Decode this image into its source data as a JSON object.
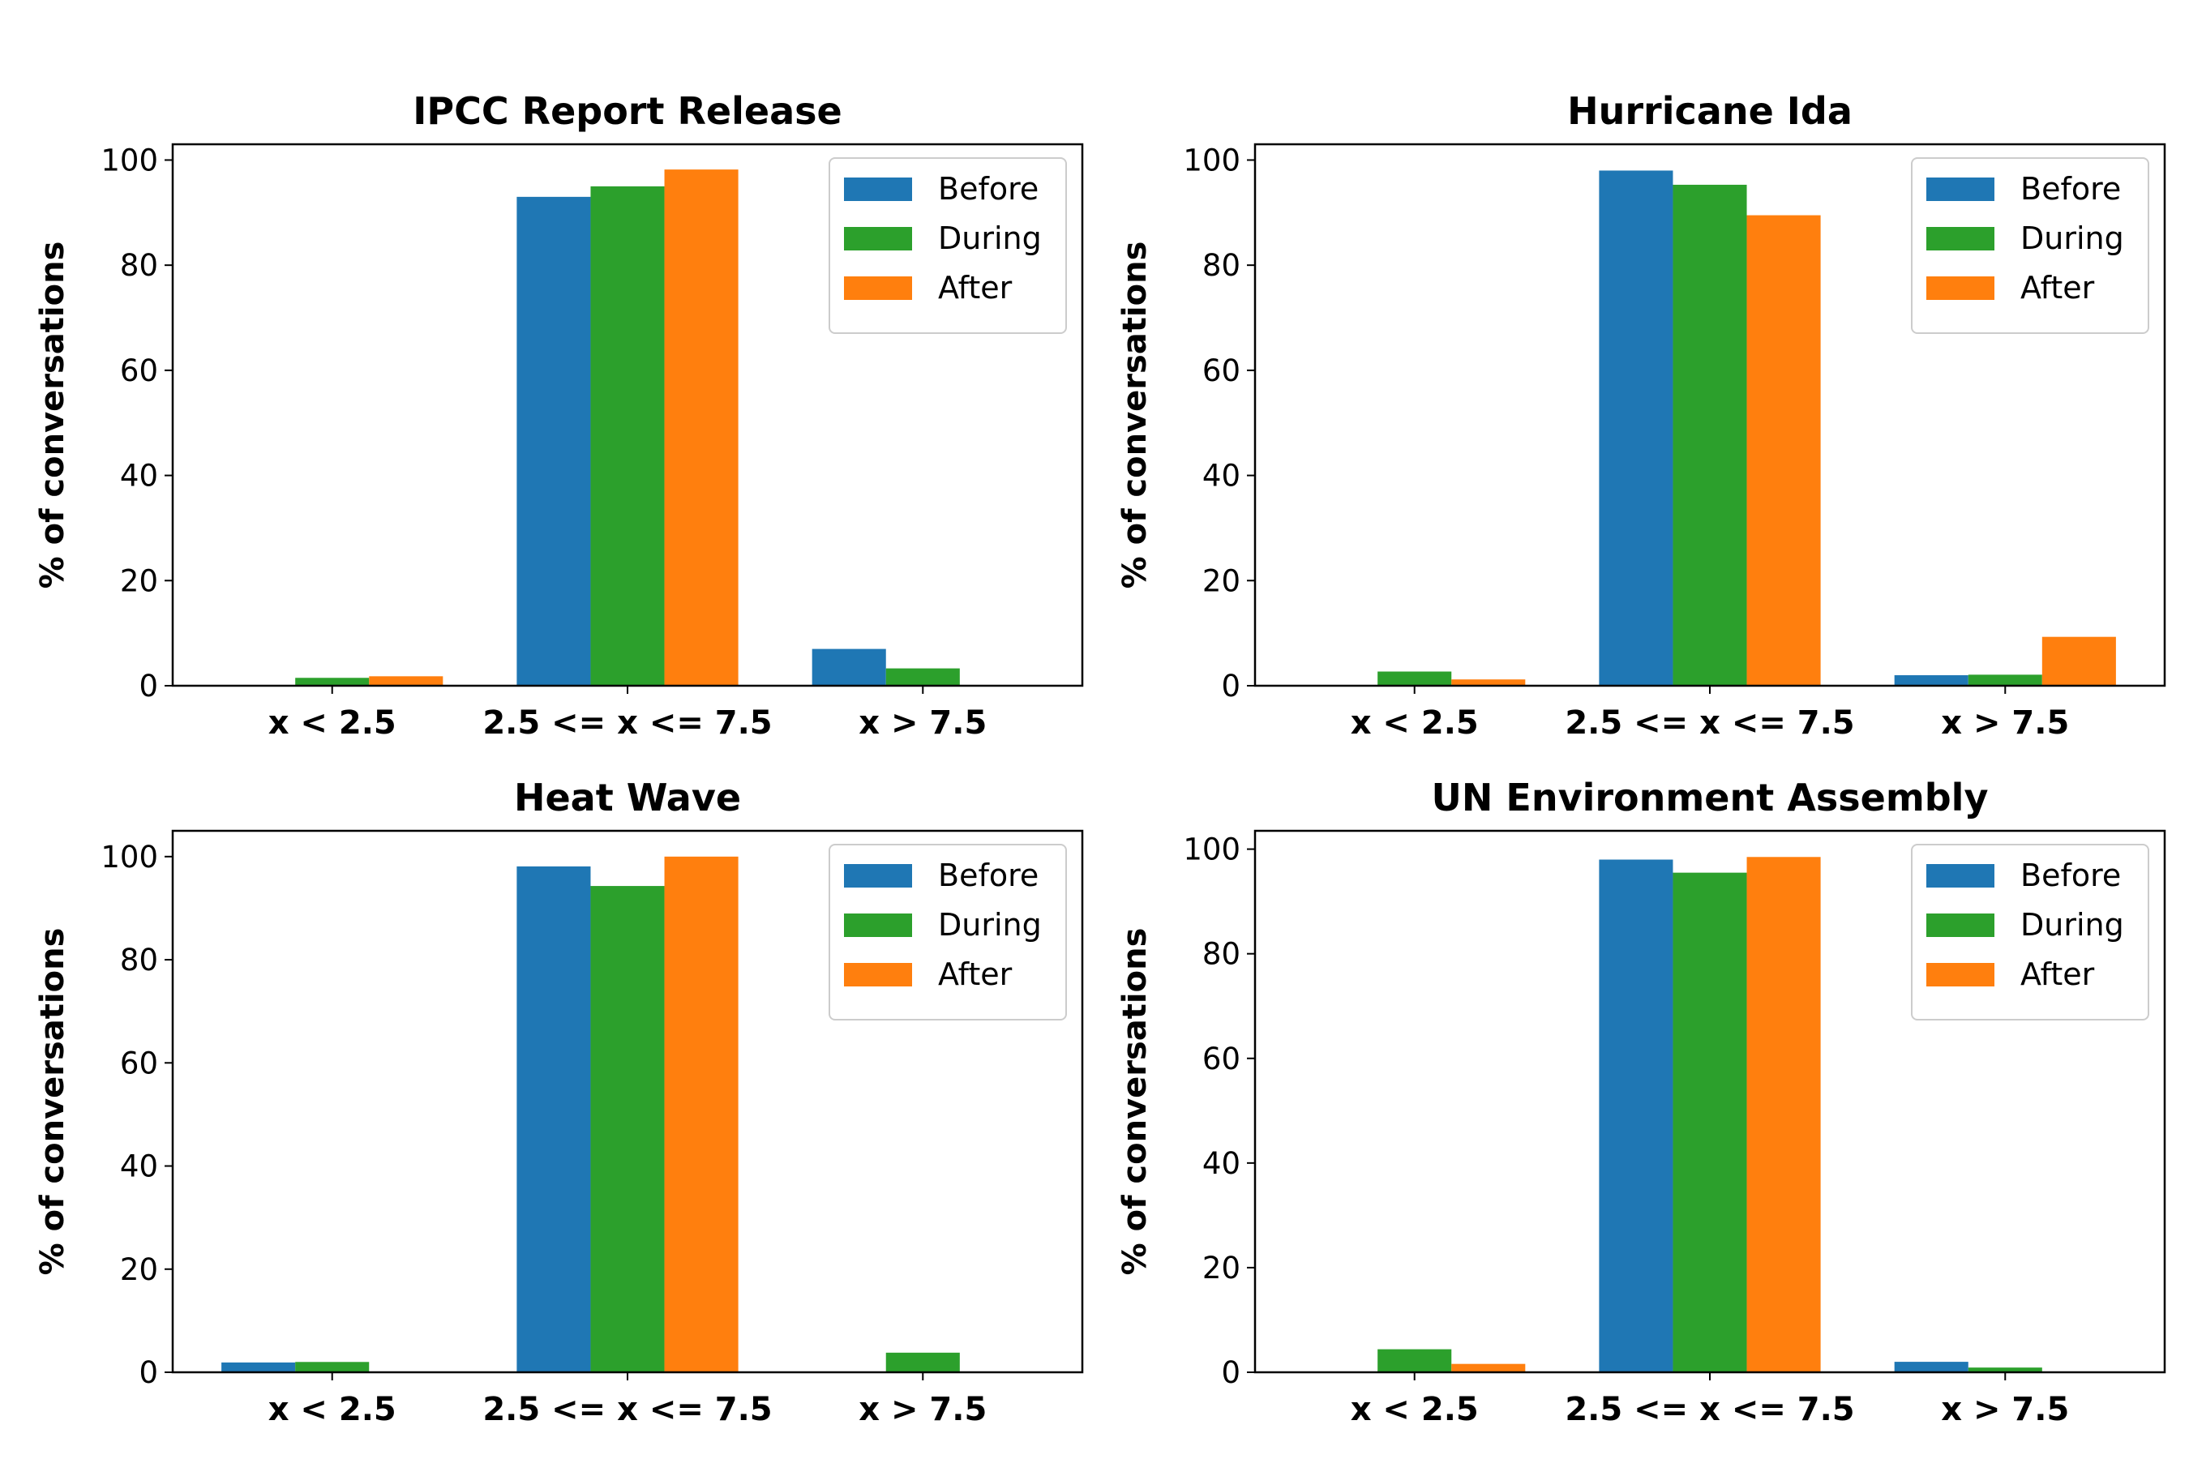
{
  "legend_placement": "upper right",
  "chart_data": [
    {
      "type": "bar",
      "title": "IPCC Report Release",
      "xlabel": "",
      "ylabel": "% of conversations",
      "categories": [
        "x < 2.5",
        "2.5 <= x <= 7.5",
        "x > 7.5"
      ],
      "ylim": [
        0,
        103
      ],
      "yticks": [
        0,
        20,
        40,
        60,
        80,
        100
      ],
      "series": [
        {
          "name": "Before",
          "color": "#1f77b4",
          "values": [
            0,
            93.0,
            7.0
          ]
        },
        {
          "name": "During",
          "color": "#2ca02c",
          "values": [
            1.5,
            95.0,
            3.3
          ]
        },
        {
          "name": "After",
          "color": "#ff7f0e",
          "values": [
            1.8,
            98.2,
            0
          ]
        }
      ]
    },
    {
      "type": "bar",
      "title": "Hurricane Ida",
      "xlabel": "",
      "ylabel": "% of conversations",
      "categories": [
        "x < 2.5",
        "2.5 <= x <= 7.5",
        "x > 7.5"
      ],
      "ylim": [
        0,
        103
      ],
      "yticks": [
        0,
        20,
        40,
        60,
        80,
        100
      ],
      "series": [
        {
          "name": "Before",
          "color": "#1f77b4",
          "values": [
            0,
            98.0,
            2.0
          ]
        },
        {
          "name": "During",
          "color": "#2ca02c",
          "values": [
            2.7,
            95.3,
            2.1
          ]
        },
        {
          "name": "After",
          "color": "#ff7f0e",
          "values": [
            1.2,
            89.5,
            9.3
          ]
        }
      ]
    },
    {
      "type": "bar",
      "title": "Heat Wave",
      "xlabel": "",
      "ylabel": "% of conversations",
      "categories": [
        "x < 2.5",
        "2.5 <= x <= 7.5",
        "x > 7.5"
      ],
      "ylim": [
        0,
        105
      ],
      "yticks": [
        0,
        20,
        40,
        60,
        80,
        100
      ],
      "series": [
        {
          "name": "Before",
          "color": "#1f77b4",
          "values": [
            1.9,
            98.1,
            0
          ]
        },
        {
          "name": "During",
          "color": "#2ca02c",
          "values": [
            2.0,
            94.3,
            3.8
          ]
        },
        {
          "name": "After",
          "color": "#ff7f0e",
          "values": [
            0,
            100.0,
            0
          ]
        }
      ]
    },
    {
      "type": "bar",
      "title": "UN Environment Assembly",
      "xlabel": "",
      "ylabel": "% of conversations",
      "categories": [
        "x < 2.5",
        "2.5 <= x <= 7.5",
        "x > 7.5"
      ],
      "ylim": [
        0,
        103.5
      ],
      "yticks": [
        0,
        20,
        40,
        60,
        80,
        100
      ],
      "series": [
        {
          "name": "Before",
          "color": "#1f77b4",
          "values": [
            0,
            98.0,
            2.0
          ]
        },
        {
          "name": "During",
          "color": "#2ca02c",
          "values": [
            4.4,
            95.5,
            0.9
          ]
        },
        {
          "name": "After",
          "color": "#ff7f0e",
          "values": [
            1.6,
            98.5,
            0
          ]
        }
      ]
    }
  ]
}
